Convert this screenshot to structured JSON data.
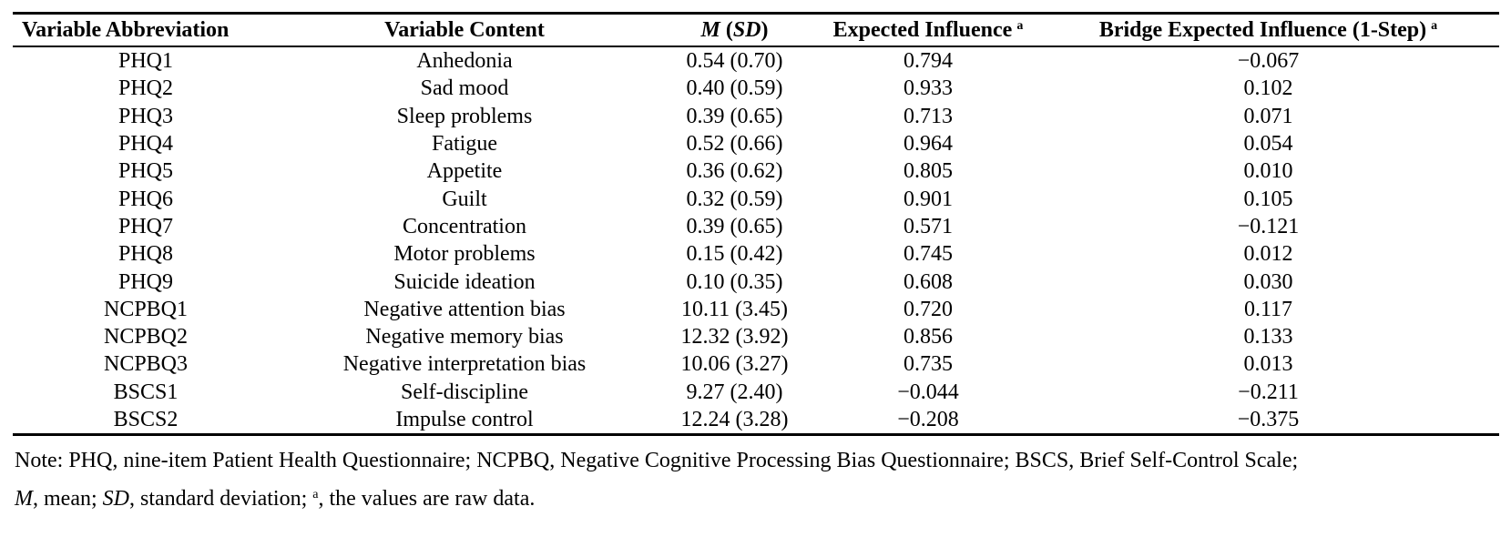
{
  "table": {
    "headers": {
      "abbr": "Variable Abbreviation",
      "content": "Variable Content",
      "msd_m": "M",
      "msd_sd": "SD",
      "ei": "Expected Influence",
      "ei_sup": "a",
      "bei": "Bridge Expected Influence (1-Step)",
      "bei_sup": "a"
    },
    "rows": [
      {
        "abbr": "PHQ1",
        "content": "Anhedonia",
        "msd": "0.54 (0.70)",
        "ei": "0.794",
        "bei": "−0.067"
      },
      {
        "abbr": "PHQ2",
        "content": "Sad mood",
        "msd": "0.40 (0.59)",
        "ei": "0.933",
        "bei": "0.102"
      },
      {
        "abbr": "PHQ3",
        "content": "Sleep problems",
        "msd": "0.39 (0.65)",
        "ei": "0.713",
        "bei": "0.071"
      },
      {
        "abbr": "PHQ4",
        "content": "Fatigue",
        "msd": "0.52 (0.66)",
        "ei": "0.964",
        "bei": "0.054"
      },
      {
        "abbr": "PHQ5",
        "content": "Appetite",
        "msd": "0.36 (0.62)",
        "ei": "0.805",
        "bei": "0.010"
      },
      {
        "abbr": "PHQ6",
        "content": "Guilt",
        "msd": "0.32 (0.59)",
        "ei": "0.901",
        "bei": "0.105"
      },
      {
        "abbr": "PHQ7",
        "content": "Concentration",
        "msd": "0.39 (0.65)",
        "ei": "0.571",
        "bei": "−0.121"
      },
      {
        "abbr": "PHQ8",
        "content": "Motor problems",
        "msd": "0.15 (0.42)",
        "ei": "0.745",
        "bei": "0.012"
      },
      {
        "abbr": "PHQ9",
        "content": "Suicide ideation",
        "msd": "0.10 (0.35)",
        "ei": "0.608",
        "bei": "0.030"
      },
      {
        "abbr": "NCPBQ1",
        "content": "Negative attention bias",
        "msd": "10.11 (3.45)",
        "ei": "0.720",
        "bei": "0.117"
      },
      {
        "abbr": "NCPBQ2",
        "content": "Negative memory bias",
        "msd": "12.32 (3.92)",
        "ei": "0.856",
        "bei": "0.133"
      },
      {
        "abbr": "NCPBQ3",
        "content": "Negative interpretation bias",
        "msd": "10.06 (3.27)",
        "ei": "0.735",
        "bei": "0.013"
      },
      {
        "abbr": "BSCS1",
        "content": "Self-discipline",
        "msd": "9.27 (2.40)",
        "ei": "−0.044",
        "bei": "−0.211"
      },
      {
        "abbr": "BSCS2",
        "content": "Impulse control",
        "msd": "12.24 (3.28)",
        "ei": "−0.208",
        "bei": "−0.375"
      }
    ]
  },
  "note": {
    "line1": "Note: PHQ, nine-item Patient Health Questionnaire; NCPBQ, Negative Cognitive Processing Bias Questionnaire; BSCS, Brief Self-Control Scale;",
    "m": "M",
    "m_text": ", mean; ",
    "sd": "SD",
    "sd_text": ", standard deviation; ",
    "sup": "a",
    "sup_text": ", the values are raw data."
  }
}
